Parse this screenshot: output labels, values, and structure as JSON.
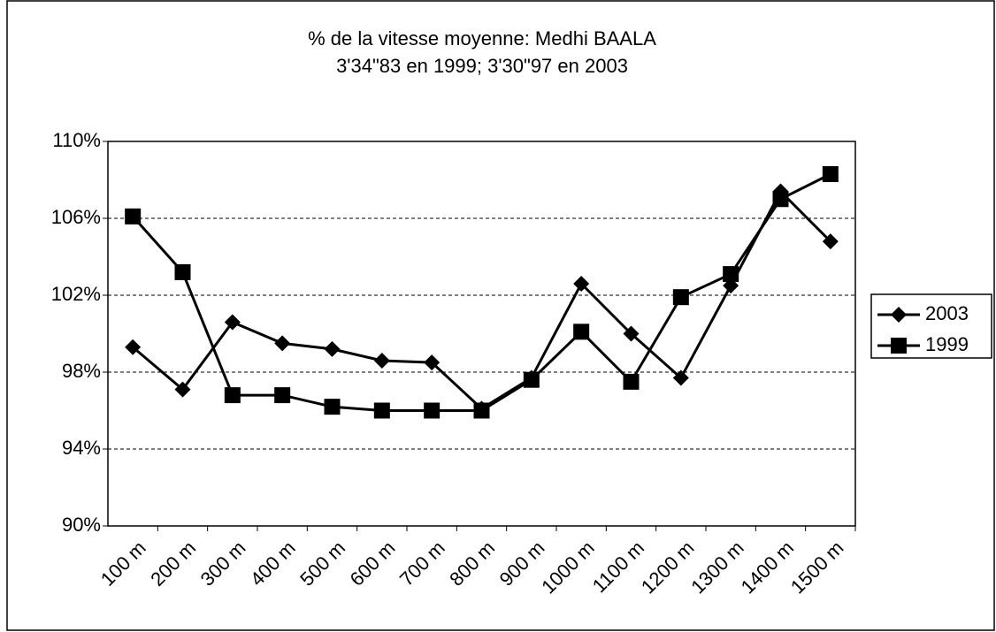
{
  "chart_data": {
    "type": "line",
    "title": [
      "% de la vitesse moyenne: Medhi BAALA",
      "3'34\"83 en 1999; 3'30\"97 en 2003"
    ],
    "categories": [
      "100 m",
      "200 m",
      "300 m",
      "400 m",
      "500 m",
      "600 m",
      "700 m",
      "800 m",
      "900 m",
      "1000 m",
      "1100 m",
      "1200 m",
      "1300 m",
      "1400 m",
      "1500 m"
    ],
    "series": [
      {
        "name": "2003",
        "color": "#000000",
        "marker": "diamond",
        "values": [
          99.3,
          97.1,
          100.6,
          99.5,
          99.2,
          98.6,
          98.5,
          96.1,
          97.7,
          102.6,
          100.0,
          97.7,
          102.5,
          107.4,
          104.8
        ]
      },
      {
        "name": "1999",
        "color": "#000000",
        "marker": "square",
        "values": [
          106.1,
          103.2,
          96.8,
          96.8,
          96.2,
          96.0,
          96.0,
          96.0,
          97.6,
          100.1,
          97.5,
          101.9,
          103.1,
          107.0,
          108.3
        ]
      }
    ],
    "ylim": [
      90,
      110
    ],
    "yticks": [
      {
        "value": 90,
        "label": "90%"
      },
      {
        "value": 94,
        "label": "94%"
      },
      {
        "value": 98,
        "label": "98%"
      },
      {
        "value": 102,
        "label": "102%"
      },
      {
        "value": 106,
        "label": "106%"
      },
      {
        "value": 110,
        "label": "110%"
      }
    ],
    "grid": true,
    "legend": "right"
  }
}
